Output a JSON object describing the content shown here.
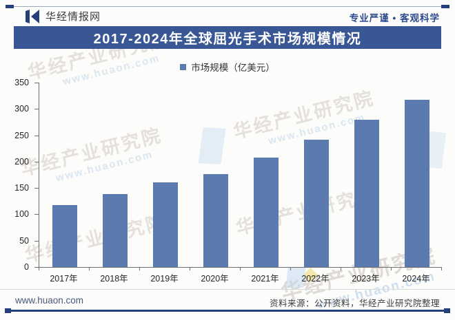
{
  "header": {
    "brand": "华经情报网",
    "tagline": "专业严谨 • 客观科学"
  },
  "title_bar": {
    "title": "2017-2024年全球屈光手术市场规模情况"
  },
  "legend": {
    "label": "市场规模（亿美元）"
  },
  "chart_data": {
    "type": "bar",
    "title": "2017-2024年全球屈光手术市场规模情况",
    "series_name": "市场规模（亿美元）",
    "categories": [
      "2017年",
      "2018年",
      "2019年",
      "2020年",
      "2021年",
      "2022年",
      "2023年",
      "2024年"
    ],
    "values": [
      117,
      138,
      161,
      176,
      208,
      241,
      280,
      318
    ],
    "unit": "亿美元",
    "xlabel": "",
    "ylabel": "",
    "ylim": [
      0,
      350
    ],
    "yticks": [
      0,
      50,
      100,
      150,
      200,
      250,
      300,
      350
    ],
    "grid": false,
    "legend_position": "top",
    "bar_color": "#5b7ab0"
  },
  "watermark": {
    "text": "华经产业研究院",
    "subtext": "www.huaon.com"
  },
  "footer": {
    "website": "www.huaon.com",
    "source": "资料来源：公开资料，华经产业研究院整理"
  },
  "colors": {
    "accent_navy": "#24407c",
    "title_band": "#3a5795",
    "bar": "#5b7ab0"
  }
}
